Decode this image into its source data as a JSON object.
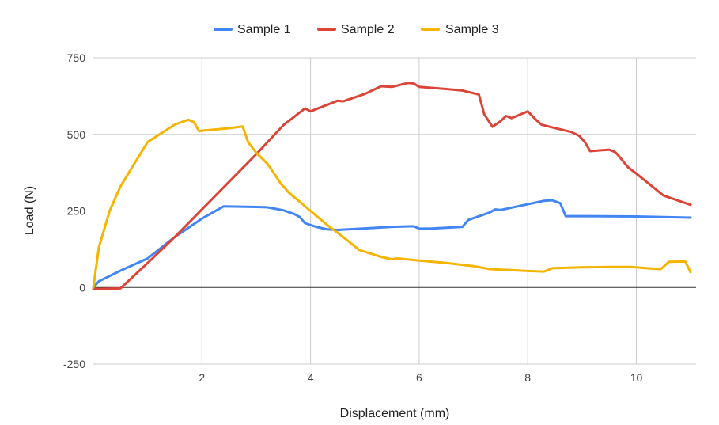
{
  "chart_data": {
    "type": "line",
    "title": "",
    "xlabel": "Displacement (mm)",
    "ylabel": "Load (N)",
    "xlim": [
      0,
      11.1
    ],
    "ylim": [
      -250,
      750
    ],
    "x_ticks": [
      2,
      4,
      6,
      8,
      10
    ],
    "y_ticks": [
      -250,
      0,
      250,
      500,
      750
    ],
    "x_tick_labels": [
      "2",
      "4",
      "6",
      "8",
      "10"
    ],
    "y_tick_labels": [
      "-250",
      "0",
      "250",
      "500",
      "750"
    ],
    "grid": true,
    "legend": "top",
    "series": [
      {
        "name": "Sample 1",
        "color": "#4285f4",
        "points": [
          [
            0,
            0
          ],
          [
            0.1,
            20
          ],
          [
            0.5,
            55
          ],
          [
            1,
            95
          ],
          [
            1.5,
            165
          ],
          [
            2,
            225
          ],
          [
            2.4,
            265
          ],
          [
            2.7,
            264
          ],
          [
            3,
            263
          ],
          [
            3.2,
            262
          ],
          [
            3.5,
            252
          ],
          [
            3.7,
            240
          ],
          [
            3.8,
            230
          ],
          [
            3.9,
            210
          ],
          [
            4.1,
            198
          ],
          [
            4.3,
            190
          ],
          [
            4.5,
            188
          ],
          [
            5,
            193
          ],
          [
            5.5,
            198
          ],
          [
            5.9,
            200
          ],
          [
            6,
            192
          ],
          [
            6.2,
            192
          ],
          [
            6.8,
            198
          ],
          [
            6.9,
            220
          ],
          [
            7.3,
            245
          ],
          [
            7.4,
            255
          ],
          [
            7.5,
            253
          ],
          [
            8.3,
            283
          ],
          [
            8.45,
            285
          ],
          [
            8.6,
            275
          ],
          [
            8.7,
            233
          ],
          [
            9,
            233
          ],
          [
            10,
            232
          ],
          [
            11,
            228
          ]
        ]
      },
      {
        "name": "Sample 2",
        "color": "#db4437",
        "points": [
          [
            0,
            -5
          ],
          [
            0.5,
            -3
          ],
          [
            1,
            80
          ],
          [
            1.5,
            165
          ],
          [
            2,
            255
          ],
          [
            2.5,
            345
          ],
          [
            3,
            435
          ],
          [
            3.5,
            530
          ],
          [
            3.9,
            585
          ],
          [
            4,
            575
          ],
          [
            4.5,
            610
          ],
          [
            4.6,
            608
          ],
          [
            5,
            632
          ],
          [
            5.3,
            657
          ],
          [
            5.5,
            655
          ],
          [
            5.8,
            668
          ],
          [
            5.9,
            666
          ],
          [
            6,
            655
          ],
          [
            6.5,
            648
          ],
          [
            6.8,
            643
          ],
          [
            7.1,
            630
          ],
          [
            7.2,
            565
          ],
          [
            7.35,
            525
          ],
          [
            7.5,
            543
          ],
          [
            7.6,
            560
          ],
          [
            7.7,
            553
          ],
          [
            8,
            575
          ],
          [
            8.15,
            548
          ],
          [
            8.25,
            532
          ],
          [
            8.4,
            525
          ],
          [
            8.8,
            508
          ],
          [
            8.95,
            495
          ],
          [
            9.05,
            475
          ],
          [
            9.15,
            445
          ],
          [
            9.5,
            450
          ],
          [
            9.6,
            443
          ],
          [
            9.65,
            435
          ],
          [
            9.85,
            392
          ],
          [
            10,
            372
          ],
          [
            10.5,
            300
          ],
          [
            11,
            270
          ]
        ]
      },
      {
        "name": "Sample 3",
        "color": "#f4b400",
        "points": [
          [
            0,
            0
          ],
          [
            0.1,
            130
          ],
          [
            0.3,
            250
          ],
          [
            0.5,
            330
          ],
          [
            1,
            475
          ],
          [
            1.5,
            532
          ],
          [
            1.75,
            548
          ],
          [
            1.85,
            540
          ],
          [
            1.95,
            510
          ],
          [
            2,
            512
          ],
          [
            2.5,
            520
          ],
          [
            2.75,
            526
          ],
          [
            2.85,
            475
          ],
          [
            3,
            440
          ],
          [
            3.2,
            405
          ],
          [
            3.3,
            380
          ],
          [
            3.45,
            340
          ],
          [
            3.6,
            310
          ],
          [
            4,
            250
          ],
          [
            4.3,
            205
          ],
          [
            4.6,
            165
          ],
          [
            4.9,
            122
          ],
          [
            5.3,
            100
          ],
          [
            5.5,
            92
          ],
          [
            5.6,
            95
          ],
          [
            6,
            88
          ],
          [
            6.5,
            80
          ],
          [
            7,
            70
          ],
          [
            7.3,
            60
          ],
          [
            8,
            54
          ],
          [
            8.3,
            52
          ],
          [
            8.45,
            63
          ],
          [
            9,
            66
          ],
          [
            9.5,
            67
          ],
          [
            9.9,
            67
          ],
          [
            10.2,
            63
          ],
          [
            10.45,
            60
          ],
          [
            10.6,
            84
          ],
          [
            10.9,
            85
          ],
          [
            11,
            50
          ]
        ]
      }
    ]
  }
}
